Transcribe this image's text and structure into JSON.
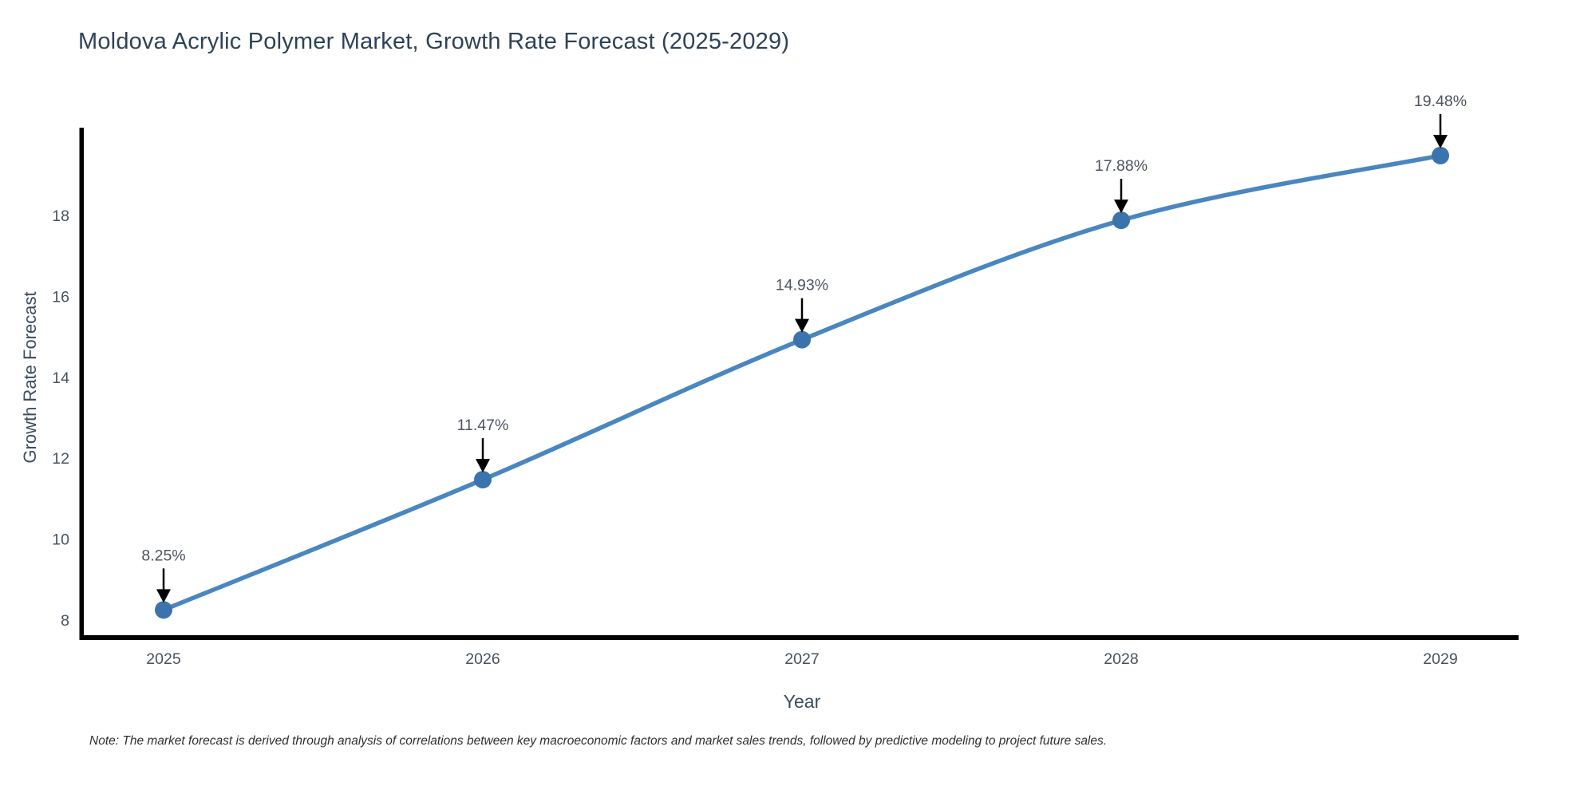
{
  "title": "Moldova Acrylic Polymer Market, Growth Rate Forecast (2025-2029)",
  "note": "Note: The market forecast is derived through analysis of correlations between key macroeconomic factors and market sales trends, followed by predictive modeling to project future sales.",
  "chart_data": {
    "type": "line",
    "title": "Moldova Acrylic Polymer Market, Growth Rate Forecast (2025-2029)",
    "xlabel": "Year",
    "ylabel": "Growth Rate Forecast",
    "categories": [
      "2025",
      "2026",
      "2027",
      "2028",
      "2029"
    ],
    "series": [
      {
        "name": "Growth Rate Forecast",
        "values": [
          8.25,
          11.47,
          14.93,
          17.88,
          19.48
        ]
      }
    ],
    "data_labels": [
      "8.25%",
      "11.47%",
      "14.93%",
      "17.88%",
      "19.48%"
    ],
    "y_ticks": [
      8,
      10,
      12,
      14,
      16,
      18
    ],
    "ylim": [
      7.45,
      20.2
    ],
    "grid": false,
    "legend_position": "none",
    "annotation_style": "black-arrow-down-to-point",
    "colors": {
      "line": "#4a86bf",
      "marker": "#3b73ad",
      "axis": "#000000",
      "annotation_arrow": "#000000",
      "title_text": "#2e4257",
      "tick_text": "#47525e",
      "label_text": "#4d5360"
    }
  }
}
